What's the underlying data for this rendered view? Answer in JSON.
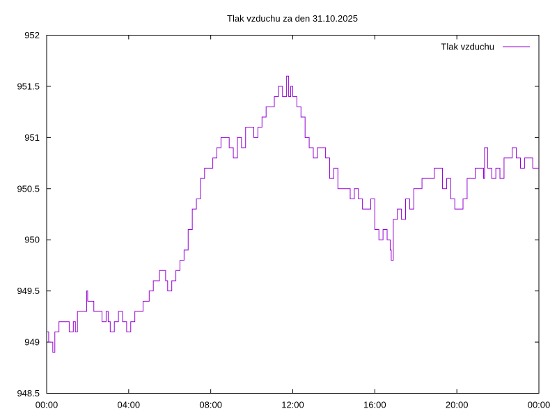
{
  "chart_data": {
    "type": "line",
    "title": "Tlak vzduchu za den 31.10.2025",
    "xlabel": "",
    "ylabel": "",
    "x_unit": "hours",
    "xlim": [
      0,
      24
    ],
    "ylim": [
      948.5,
      952
    ],
    "x_ticks": [
      {
        "value": 0,
        "label": "00:00"
      },
      {
        "value": 4,
        "label": "04:00"
      },
      {
        "value": 8,
        "label": "08:00"
      },
      {
        "value": 12,
        "label": "12:00"
      },
      {
        "value": 16,
        "label": "16:00"
      },
      {
        "value": 20,
        "label": "20:00"
      },
      {
        "value": 24,
        "label": "00:00"
      }
    ],
    "y_ticks": [
      {
        "value": 948.5,
        "label": "948.5"
      },
      {
        "value": 949,
        "label": "949"
      },
      {
        "value": 949.5,
        "label": "949.5"
      },
      {
        "value": 950,
        "label": "950"
      },
      {
        "value": 950.5,
        "label": "950.5"
      },
      {
        "value": 951,
        "label": "951"
      },
      {
        "value": 951.5,
        "label": "951.5"
      },
      {
        "value": 952,
        "label": "952"
      }
    ],
    "grid": false,
    "legend_position": "top-right",
    "series": [
      {
        "name": "Tlak vzduchu",
        "color": "#9400d3",
        "x": [
          0,
          0.1,
          0.2,
          0.3,
          0.4,
          0.5,
          0.6,
          0.7,
          0.9,
          1.1,
          1.3,
          1.4,
          1.5,
          1.7,
          1.9,
          1.95,
          2.0,
          2.1,
          2.3,
          2.5,
          2.7,
          2.9,
          3.0,
          3.1,
          3.3,
          3.5,
          3.7,
          3.9,
          4.1,
          4.3,
          4.5,
          4.7,
          4.9,
          5.0,
          5.2,
          5.5,
          5.7,
          5.8,
          5.9,
          6.1,
          6.3,
          6.5,
          6.7,
          6.9,
          7.1,
          7.3,
          7.5,
          7.7,
          7.9,
          8.1,
          8.3,
          8.5,
          8.7,
          8.9,
          9.1,
          9.3,
          9.5,
          9.7,
          9.9,
          10.1,
          10.3,
          10.5,
          10.7,
          10.9,
          11.1,
          11.3,
          11.5,
          11.6,
          11.7,
          11.8,
          11.9,
          12.0,
          12.2,
          12.4,
          12.6,
          12.8,
          13.0,
          13.2,
          13.4,
          13.6,
          13.8,
          14.0,
          14.2,
          14.4,
          14.6,
          14.8,
          15.0,
          15.2,
          15.4,
          15.6,
          15.8,
          16.0,
          16.2,
          16.4,
          16.6,
          16.75,
          16.8,
          16.9,
          17.1,
          17.3,
          17.5,
          17.7,
          17.9,
          18.1,
          18.3,
          18.5,
          18.7,
          18.9,
          19.1,
          19.3,
          19.5,
          19.7,
          19.9,
          20.1,
          20.3,
          20.5,
          20.7,
          20.9,
          21.1,
          21.3,
          21.35,
          21.5,
          21.7,
          21.9,
          22.1,
          22.3,
          22.5,
          22.7,
          22.9,
          23.1,
          23.3,
          23.5,
          23.7,
          23.9,
          24.0
        ],
        "y": [
          949.1,
          949.0,
          949.0,
          948.9,
          949.1,
          949.1,
          949.2,
          949.2,
          949.2,
          949.1,
          949.2,
          949.1,
          949.3,
          949.3,
          949.3,
          949.5,
          949.4,
          949.4,
          949.3,
          949.3,
          949.2,
          949.3,
          949.2,
          949.1,
          949.2,
          949.3,
          949.2,
          949.1,
          949.2,
          949.3,
          949.3,
          949.4,
          949.4,
          949.5,
          949.6,
          949.7,
          949.7,
          949.6,
          949.5,
          949.6,
          949.7,
          949.8,
          949.9,
          950.1,
          950.3,
          950.4,
          950.6,
          950.7,
          950.7,
          950.8,
          950.9,
          951.0,
          951.0,
          950.9,
          950.8,
          951.0,
          950.9,
          951.1,
          951.1,
          951.0,
          951.1,
          951.2,
          951.3,
          951.3,
          951.4,
          951.5,
          951.4,
          951.4,
          951.6,
          951.4,
          951.5,
          951.4,
          951.3,
          951.2,
          951.0,
          950.9,
          950.8,
          950.9,
          950.9,
          950.8,
          950.6,
          950.7,
          950.5,
          950.5,
          950.5,
          950.4,
          950.5,
          950.4,
          950.3,
          950.3,
          950.4,
          950.1,
          950.0,
          950.1,
          950.0,
          949.9,
          949.8,
          950.2,
          950.3,
          950.2,
          950.4,
          950.3,
          950.5,
          950.5,
          950.6,
          950.6,
          950.6,
          950.7,
          950.7,
          950.5,
          950.6,
          950.4,
          950.3,
          950.3,
          950.4,
          950.6,
          950.6,
          950.7,
          950.7,
          950.6,
          950.9,
          950.7,
          950.6,
          950.7,
          950.6,
          950.8,
          950.8,
          950.9,
          950.8,
          950.7,
          950.8,
          950.8,
          950.7,
          950.7,
          950.7
        ]
      }
    ]
  }
}
